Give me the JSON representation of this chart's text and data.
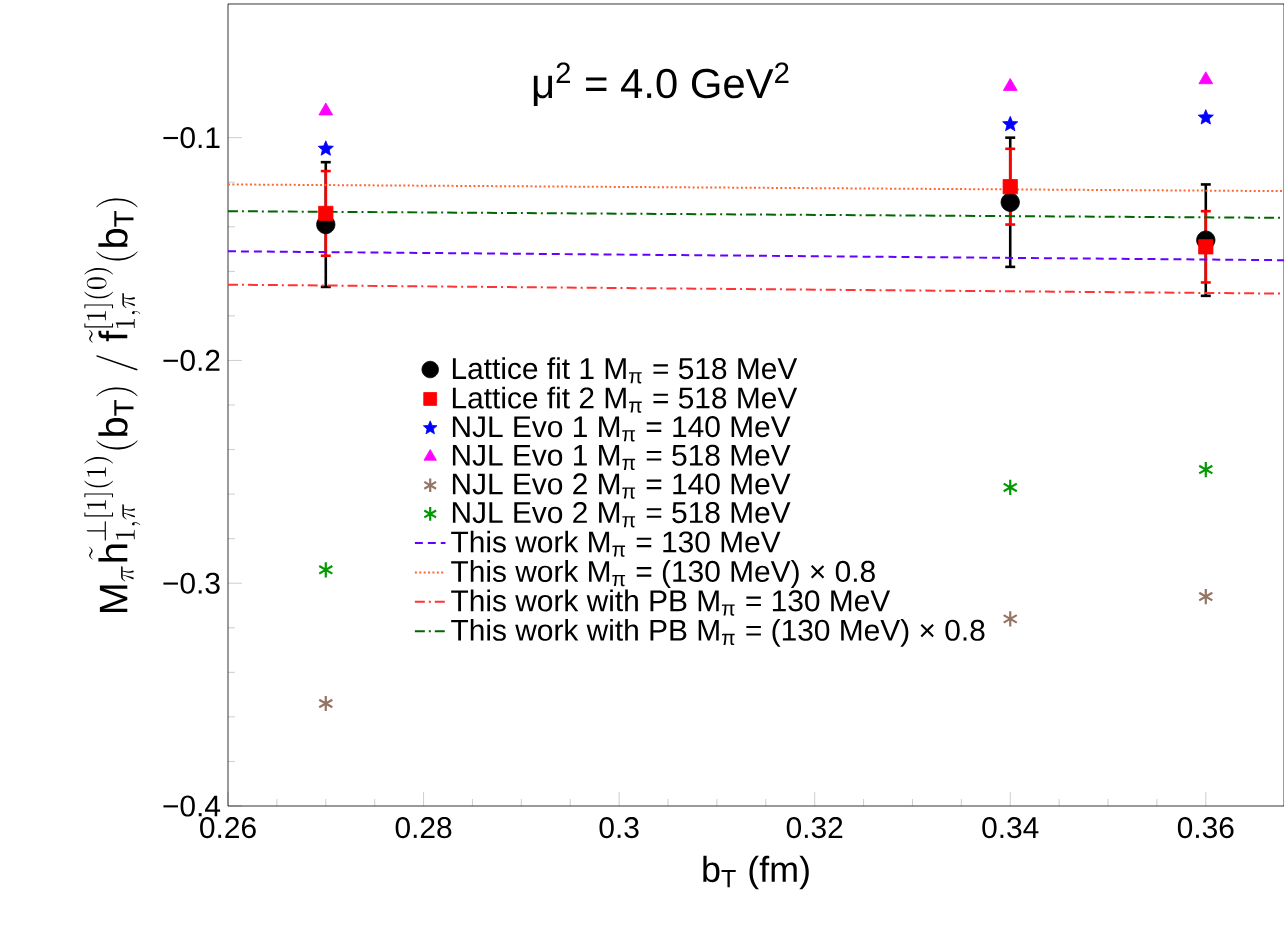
{
  "chart_data": {
    "type": "scatter",
    "xlabel": "b$_{T}$ (fm)",
    "ylabel": "\\mathrm{M}_{\\pi}\\tilde{\\mathrm{h}}_{1,\\pi}^{\\perp[1](1)}(\\mathrm{b}_{\\mathrm{T}})\\;/\\;\\tilde{\\mathrm{f}}_{1,\\pi}^{[1](0)}(\\mathrm{b}_{\\mathrm{T}})",
    "annotations": [
      "μ$^{2}$ = 4.0 GeV$^{2}$"
    ],
    "xlim": [
      0.26,
      0.368
    ],
    "ylim": [
      -0.4,
      -0.04
    ],
    "xticks": [
      0.26,
      0.28,
      0.3,
      0.32,
      0.34,
      0.36
    ],
    "yticks": [
      {
        "value": -0.4,
        "label": "−0.4"
      },
      {
        "value": -0.3,
        "label": "−0.3"
      },
      {
        "value": -0.2,
        "label": "−0.2"
      },
      {
        "value": -0.1,
        "label": "−0.1"
      }
    ],
    "grid": false,
    "legend": "bottom",
    "series": [
      {
        "name": "Lattice fit 1 M$_{π}$ = 518 MeV",
        "marker": "circle",
        "color": "#000000",
        "x": [
          0.27,
          0.34,
          0.36
        ],
        "values": [
          -0.139,
          -0.129,
          -0.146
        ],
        "errors": [
          0.028,
          0.029,
          0.025
        ]
      },
      {
        "name": "Lattice fit 2 M$_{π}$ = 518 MeV",
        "marker": "square",
        "color": "#ff0000",
        "x": [
          0.27,
          0.34,
          0.36
        ],
        "values": [
          -0.134,
          -0.122,
          -0.149
        ],
        "errors": [
          0.019,
          0.017,
          0.016
        ]
      },
      {
        "name": "NJL Evo 1 M$_{π}$ = 140 MeV",
        "marker": "star",
        "color": "#0000ff",
        "x": [
          0.27,
          0.34,
          0.36
        ],
        "values": [
          -0.105,
          -0.094,
          -0.091
        ]
      },
      {
        "name": "NJL Evo 1 M$_{π}$ = 518 MeV",
        "marker": "triangle",
        "color": "#ff00ff",
        "x": [
          0.27,
          0.34,
          0.36
        ],
        "values": [
          -0.088,
          -0.077,
          -0.074
        ]
      },
      {
        "name": "NJL Evo 2 M$_{π}$ = 140 MeV",
        "marker": "cross",
        "color": "#957463",
        "x": [
          0.27,
          0.34,
          0.36
        ],
        "values": [
          -0.354,
          -0.316,
          -0.306
        ]
      },
      {
        "name": "NJL Evo 2 M$_{π}$ = 518 MeV",
        "marker": "cross",
        "color": "#009900",
        "x": [
          0.27,
          0.34,
          0.36
        ],
        "values": [
          -0.294,
          -0.257,
          -0.249
        ]
      },
      {
        "name": "This work M$_{π}$ = 130 MeV",
        "type": "line",
        "line_style": "dashed",
        "color": "#6600ff",
        "x": [
          0.26,
          0.368
        ],
        "values": [
          -0.151,
          -0.155
        ]
      },
      {
        "name": "This work M$_{π}$ = (130 MeV) × 0.8",
        "type": "line",
        "line_style": "dotted",
        "color": "#ff6633",
        "x": [
          0.26,
          0.368
        ],
        "values": [
          -0.121,
          -0.124
        ]
      },
      {
        "name": "This work with PB M$_{π}$ = 130 MeV",
        "type": "line",
        "line_style": "dashdot",
        "color": "#ff3333",
        "x": [
          0.26,
          0.368
        ],
        "values": [
          -0.166,
          -0.17
        ]
      },
      {
        "name": "This work with PB M$_{π}$ = (130 MeV) × 0.8",
        "type": "line",
        "line_style": "dashdot",
        "color": "#006600",
        "x": [
          0.26,
          0.368
        ],
        "values": [
          -0.133,
          -0.136
        ]
      }
    ]
  }
}
